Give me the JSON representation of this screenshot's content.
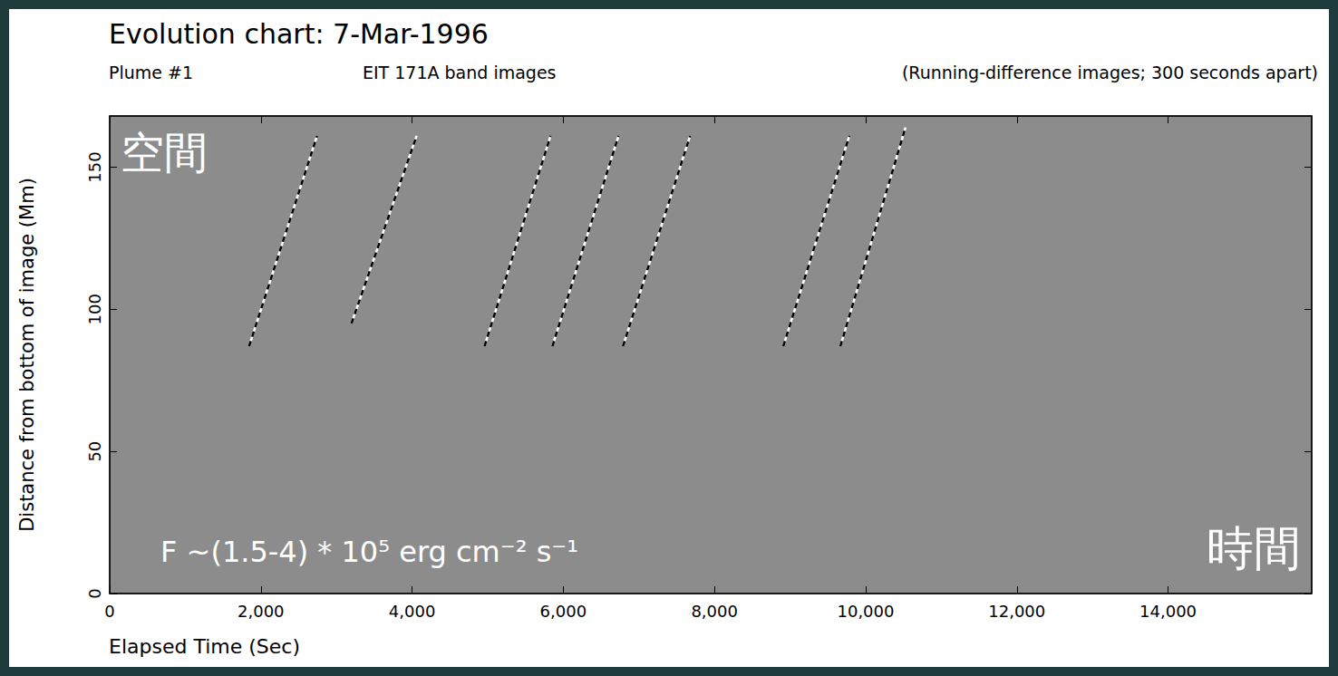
{
  "chart_data": {
    "type": "line",
    "title": "Evolution chart: 7-Mar-1996",
    "subtitle": [
      "Plume #1",
      "EIT 171A band images",
      "(Running-difference images; 300 seconds apart)"
    ],
    "x_label": "Elapsed Time (Sec)",
    "y_label": "Distance from bottom of image (Mm)",
    "xlim": [
      0,
      15900
    ],
    "ylim": [
      0,
      168
    ],
    "xticks": [
      0,
      {
        "value": 2000,
        "label": "2,000"
      },
      {
        "value": 4000,
        "label": "4,000"
      },
      {
        "value": 6000,
        "label": "6,000"
      },
      {
        "value": 8000,
        "label": "8,000"
      },
      {
        "value": 10000,
        "label": "10,000"
      },
      {
        "value": 12000,
        "label": "12,000"
      },
      {
        "value": 14000,
        "label": "14,000"
      }
    ],
    "yticks": [
      0,
      50,
      100,
      150
    ],
    "grid": false,
    "series": [
      {
        "x": [
          1844,
          2743
        ],
        "values": [
          87,
          161
        ],
        "color": "#000000",
        "line_style": "dashed"
      },
      {
        "x": [
          3198,
          4060
        ],
        "values": [
          95,
          161
        ],
        "color": "#000000",
        "line_style": "dashed"
      },
      {
        "x": [
          4958,
          5832
        ],
        "values": [
          87,
          161
        ],
        "color": "#000000",
        "line_style": "dashed"
      },
      {
        "x": [
          5856,
          6731
        ],
        "values": [
          87,
          161
        ],
        "color": "#000000",
        "line_style": "dashed"
      },
      {
        "x": [
          6790,
          7677
        ],
        "values": [
          87,
          161
        ],
        "color": "#000000",
        "line_style": "dashed"
      },
      {
        "x": [
          8910,
          9784
        ],
        "values": [
          87,
          161
        ],
        "color": "#000000",
        "line_style": "dashed"
      },
      {
        "x": [
          9665,
          10527
        ],
        "values": [
          87,
          164
        ],
        "color": "#000000",
        "line_style": "dashed"
      }
    ],
    "annotations": [
      "空間",
      "時間",
      "F ~(1.5-4) * 10⁵ erg cm⁻² s⁻¹"
    ]
  }
}
